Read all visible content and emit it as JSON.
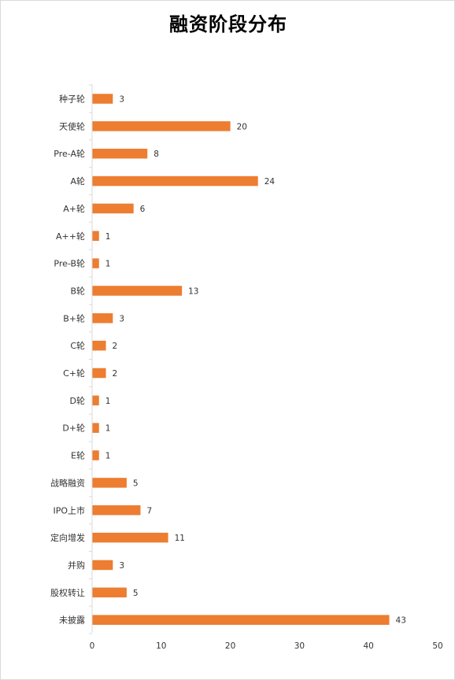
{
  "chart_data": {
    "type": "bar",
    "orientation": "horizontal",
    "title": "融资阶段分布",
    "categories": [
      "种子轮",
      "天使轮",
      "Pre-A轮",
      "A轮",
      "A+轮",
      "A++轮",
      "Pre-B轮",
      "B轮",
      "B+轮",
      "C轮",
      "C+轮",
      "D轮",
      "D+轮",
      "E轮",
      "战略融资",
      "IPO上市",
      "定向增发",
      "并购",
      "股权转让",
      "未披露"
    ],
    "values": [
      3,
      20,
      8,
      24,
      6,
      1,
      1,
      13,
      3,
      2,
      2,
      1,
      1,
      1,
      5,
      7,
      11,
      3,
      5,
      43
    ],
    "xlim": [
      0,
      50
    ],
    "xticks": [
      "0",
      "10",
      "20",
      "30",
      "40",
      "50"
    ],
    "grid": false,
    "legend": "none",
    "bar_color": "#ed7d31",
    "axis_color": "#d9d9d9"
  }
}
